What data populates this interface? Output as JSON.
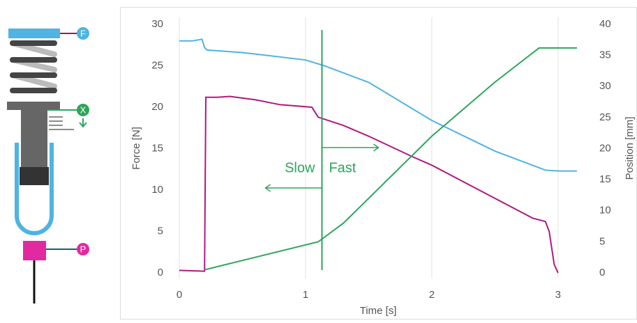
{
  "diagram": {
    "labels": [
      "F",
      "X",
      "P"
    ]
  },
  "chart_data": {
    "type": "line",
    "xlabel": "Time [s]",
    "ylabel": "Force [N]",
    "y2label": "Position [mm]",
    "xlim": [
      0,
      3.2
    ],
    "xticks": [
      0,
      1,
      2,
      3
    ],
    "ylim": [
      0,
      30
    ],
    "yticks": [
      0,
      5,
      10,
      15,
      20,
      25,
      30
    ],
    "y2lim": [
      0,
      40
    ],
    "y2ticks": [
      0,
      5,
      10,
      15,
      20,
      25,
      30,
      35,
      40
    ],
    "grid": "x",
    "vline": 1.13,
    "annotations": [
      "Slow",
      "Fast"
    ],
    "series": [
      {
        "color": "#4fb3e3",
        "x": [
          0,
          0.1,
          0.18,
          0.2,
          0.22,
          0.5,
          1.0,
          1.15,
          1.5,
          2.0,
          2.5,
          2.9,
          3.0,
          3.15
        ],
        "values": [
          28.0,
          28.0,
          28.2,
          27.2,
          26.9,
          26.6,
          25.7,
          25.0,
          23.0,
          18.4,
          14.7,
          12.4,
          12.3,
          12.3
        ]
      },
      {
        "color": "#b0187f",
        "x": [
          0,
          0.2,
          0.21,
          0.3,
          0.4,
          0.6,
          0.8,
          1.05,
          1.1,
          1.3,
          1.5,
          1.85,
          2.0,
          2.5,
          2.8,
          2.9,
          2.93,
          2.97,
          3.0
        ],
        "values": [
          0.3,
          0.2,
          21.2,
          21.2,
          21.3,
          20.9,
          20.3,
          20.0,
          18.8,
          17.8,
          16.5,
          14.0,
          13.0,
          9.0,
          6.6,
          6.2,
          5.0,
          1.0,
          0.0
        ]
      },
      {
        "color": "#2ea55a",
        "axis": "y2",
        "x": [
          0.2,
          0.6,
          1.1,
          1.3,
          1.5,
          2.0,
          2.5,
          2.85,
          3.15
        ],
        "values": [
          0.5,
          2.5,
          5.0,
          8.0,
          12.0,
          22.0,
          30.7,
          36.2,
          36.2
        ]
      }
    ]
  }
}
